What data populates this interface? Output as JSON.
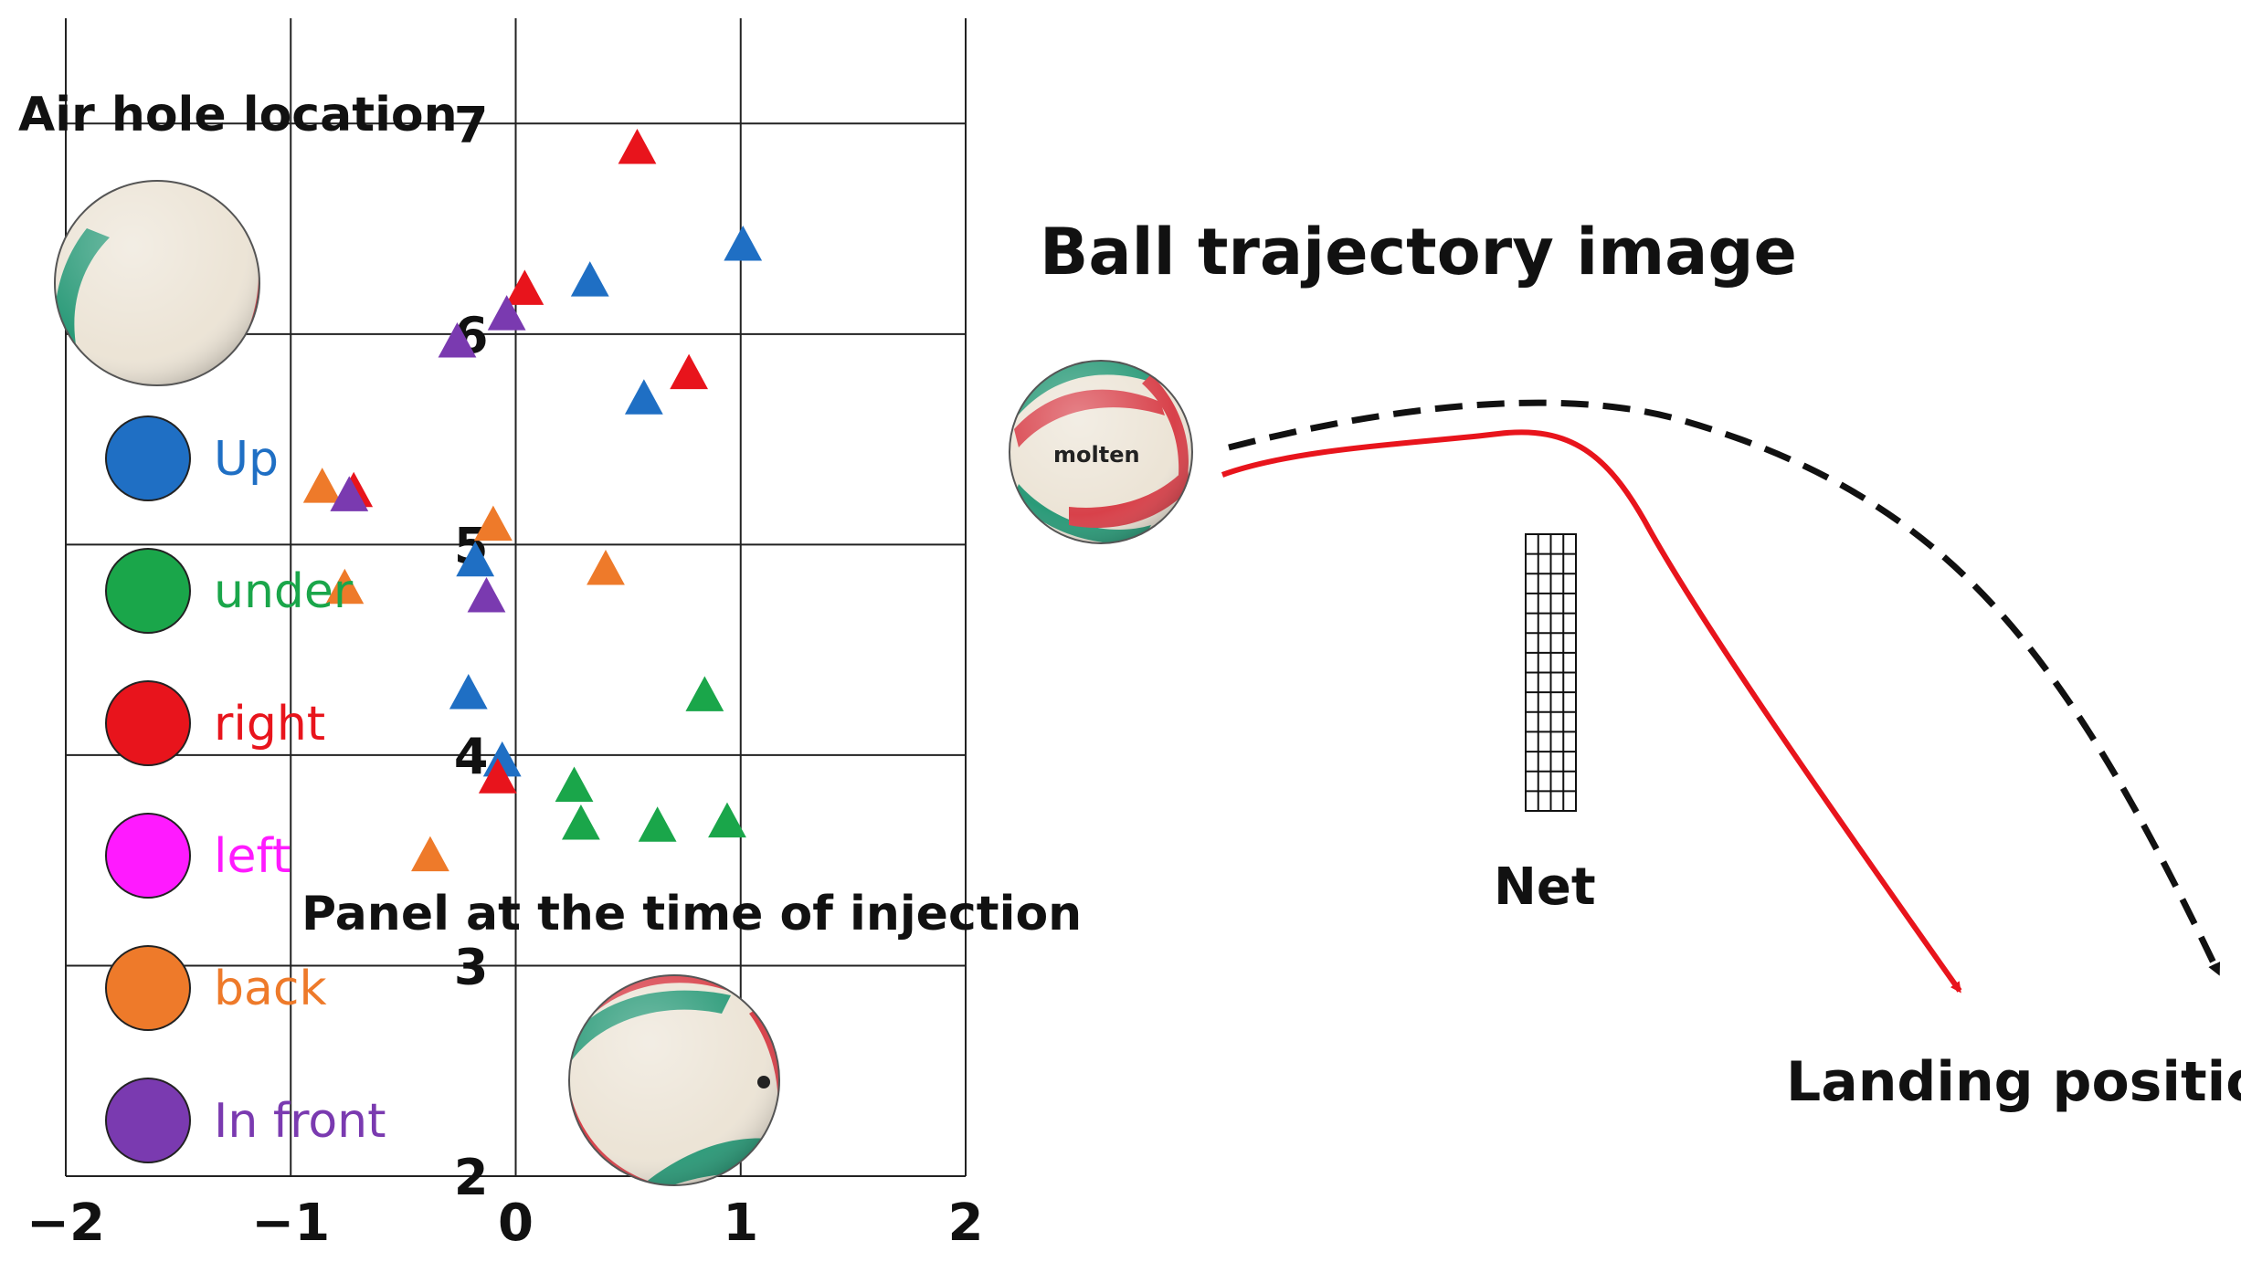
{
  "chart_data": {
    "type": "scatter",
    "title": "",
    "xlabel": "",
    "ylabel": "",
    "xlim": [
      -2,
      2
    ],
    "ylim": [
      2,
      7.5
    ],
    "x_ticks": [
      "-2",
      "-1",
      "0",
      "1",
      "2"
    ],
    "y_ticks": [
      "2",
      "3",
      "4",
      "5",
      "6",
      "7"
    ],
    "grid": true,
    "marker": "triangle",
    "annotations": {
      "air_hole_location": "Air hole location",
      "panel_at_injection": "Panel at the time of injection"
    },
    "series": [
      {
        "name": "Up",
        "color": "#1f6fc4",
        "points": [
          [
            1.01,
            6.42
          ],
          [
            0.33,
            6.25
          ],
          [
            0.57,
            5.69
          ],
          [
            -0.18,
            4.92
          ],
          [
            -0.21,
            4.29
          ],
          [
            -0.06,
            3.97
          ]
        ]
      },
      {
        "name": "under",
        "color": "#1aa64a",
        "points": [
          [
            0.84,
            4.28
          ],
          [
            0.26,
            3.85
          ],
          [
            0.29,
            3.67
          ],
          [
            0.63,
            3.66
          ],
          [
            0.94,
            3.68
          ]
        ]
      },
      {
        "name": "right",
        "color": "#e8141c",
        "points": [
          [
            0.54,
            6.88
          ],
          [
            0.04,
            6.21
          ],
          [
            0.77,
            5.81
          ],
          [
            -0.72,
            5.25
          ],
          [
            -0.08,
            3.89
          ]
        ]
      },
      {
        "name": "left",
        "color": "#ff1aff",
        "points": []
      },
      {
        "name": "back",
        "color": "#ee7a2a",
        "points": [
          [
            -0.86,
            5.27
          ],
          [
            -0.1,
            5.09
          ],
          [
            0.4,
            4.88
          ],
          [
            -0.76,
            4.79
          ],
          [
            -0.38,
            3.52
          ]
        ]
      },
      {
        "name": "In front",
        "color": "#7a3ab0",
        "points": [
          [
            -0.04,
            6.09
          ],
          [
            -0.26,
            5.96
          ],
          [
            -0.74,
            5.23
          ],
          [
            -0.13,
            4.75
          ]
        ]
      }
    ]
  },
  "trajectory": {
    "title": "Ball trajectory image",
    "net_label": "Net",
    "landing_label": "Landing position",
    "ball_text": "molten"
  },
  "colors": {
    "ball_green": "#2a9a78",
    "ball_red": "#d8414a",
    "ball_cream": "#ece4d6",
    "trajectory_solid": "#e8141c",
    "trajectory_dashed": "#111111"
  }
}
